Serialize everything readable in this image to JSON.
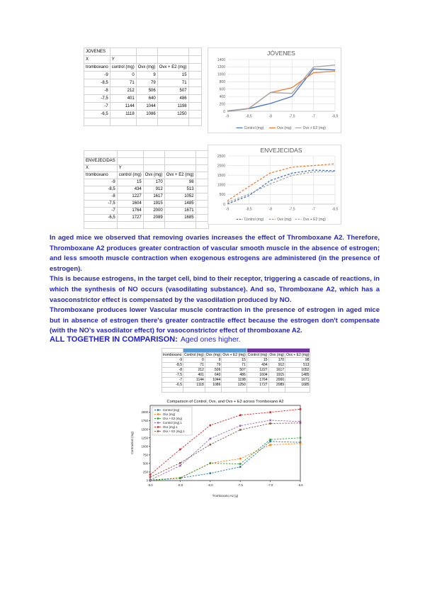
{
  "document": {
    "paragraphs": [
      "In aged mice we observed that removing ovaries increases the effect of Thromboxane A2. Therefore, Thromboxane A2 produces greater contraction of vascular smooth muscle in the absence of estrogen; and less smooth muscle contraction when exogenous estrogens are administered (in the presence of estrogen).",
      "This is because estrogens, in the target cell, bind to their receptor, triggering a cascade of reactions, in which the synthesis of NO occurs (vasodilating substance). And so, Thromboxane A2, which has a vasoconstrictor effect is compensated by the vasodilation produced by NO.",
      "Thromboxane produces lower Vascular muscle contraction in the presence of estrogen in aged mice but in absence of estrogen there's greater contractile effect because the estrogen don't compensate (with the NO's vasodilator effect) for vasoconstrictor effect of thromboxane A2."
    ],
    "comparison_heading": "ALL TOGETHER IN COMPARISON:",
    "comparison_note": "Aged ones higher.",
    "text_color": "#2326c9",
    "heading_color": "#1c1cf0"
  },
  "young_table": {
    "title": "JOVENES",
    "x_label": "X",
    "y_label": "Y",
    "headers": [
      "tromboxano",
      "control (mg)",
      "Ovx (mg)",
      "Ovx + E2 (mg)"
    ],
    "rows": [
      [
        "-9",
        "0",
        "9",
        "15"
      ],
      [
        "-8,5",
        "71",
        "79",
        "71"
      ],
      [
        "-8",
        "212",
        "506",
        "507"
      ],
      [
        "-7,5",
        "401",
        "640",
        "486"
      ],
      [
        "-7",
        "1144",
        "1044",
        "1198"
      ],
      [
        "-6,5",
        "1118",
        "1086",
        "1250"
      ]
    ]
  },
  "aged_table": {
    "title": "ENVEJECIDAS",
    "x_label": "X",
    "y_label": "Y",
    "headers": [
      "tromboxano",
      "control (mg)",
      "Ovx (mg)",
      "Ovx + E2 (mg)"
    ],
    "rows": [
      [
        "-9",
        "15",
        "170",
        "98"
      ],
      [
        "-8,5",
        "434",
        "912",
        "513"
      ],
      [
        "-8",
        "1227",
        "1617",
        "1052"
      ],
      [
        "-7,5",
        "1604",
        "1915",
        "1485"
      ],
      [
        "-7",
        "1764",
        "2000",
        "1671"
      ],
      [
        "-6,5",
        "1727",
        "2089",
        "1685"
      ]
    ]
  },
  "comparison_table": {
    "young_band_color": "#5B9BD5",
    "aged_band_color": "#7030A0",
    "headers": [
      "tromboxano",
      "Control (mg)",
      "Ovx (mg)",
      "Ovx + E2 (mg)",
      "Control (mg)",
      "Ovx (mg)",
      "Ovx + E2 (mg)"
    ],
    "rows": [
      [
        "-9",
        "0",
        "9",
        "15",
        "15",
        "170",
        "98"
      ],
      [
        "-8,5",
        "71",
        "79",
        "71",
        "434",
        "912",
        "513"
      ],
      [
        "-8",
        "212",
        "506",
        "507",
        "1227",
        "1617",
        "1052"
      ],
      [
        "-7,5",
        "401",
        "640",
        "486",
        "1604",
        "1915",
        "1485"
      ],
      [
        "-7",
        "1144",
        "1044",
        "1198",
        "1764",
        "2000",
        "1671"
      ],
      [
        "-6,5",
        "1118",
        "1086",
        "1250",
        "1727",
        "2089",
        "1685"
      ]
    ]
  },
  "chart_data": [
    {
      "type": "line",
      "title": "JÓVENES",
      "categories": [
        "-9",
        "-8,5",
        "-8",
        "-7,5",
        "-7",
        "-6,5"
      ],
      "series": [
        {
          "name": "Control (mg)",
          "color": "#4472C4",
          "values": [
            0,
            71,
            212,
            401,
            1144,
            1118
          ]
        },
        {
          "name": "Ovx (mg)",
          "color": "#ED7D31",
          "values": [
            9,
            79,
            506,
            640,
            1044,
            1086
          ]
        },
        {
          "name": "Ovx + E2 (mg)",
          "color": "#A5A5A5",
          "values": [
            15,
            71,
            507,
            486,
            1198,
            1250
          ]
        }
      ],
      "ylim": [
        0,
        1400
      ],
      "ytick": 200,
      "grid": true,
      "legend_position": "bottom",
      "line_style": "solid"
    },
    {
      "type": "line",
      "title": "ENVEJECIDAS",
      "categories": [
        "-9",
        "-8,5",
        "-8",
        "-7,5",
        "-7",
        "-6,5"
      ],
      "series": [
        {
          "name": "Control (mg)",
          "color": "#4472C4",
          "values": [
            15,
            434,
            1227,
            1604,
            1764,
            1727
          ]
        },
        {
          "name": "Ovx (mg)",
          "color": "#ED7D31",
          "values": [
            170,
            912,
            1617,
            1915,
            2000,
            2089
          ]
        },
        {
          "name": "Ovx + E2 (mg)",
          "color": "#A5A5A5",
          "values": [
            98,
            513,
            1052,
            1485,
            1671,
            1685
          ]
        }
      ],
      "ylim": [
        0,
        2500
      ],
      "ytick": 500,
      "grid": true,
      "legend_position": "bottom",
      "line_style": "dashed"
    },
    {
      "type": "line",
      "title": "Comparison of Control, Ovx, and Ovx + E2 across Tromboxano A2",
      "xlabel": "Tromboxano A2 (g)",
      "ylabel": "Contraction (mg)",
      "categories": [
        "-9.0",
        "-8.5",
        "-8.0",
        "-7.5",
        "-7.0",
        "-6.5"
      ],
      "series": [
        {
          "name": "Control (mg)",
          "color": "#1f77b4",
          "values": [
            0,
            71,
            212,
            401,
            1144,
            1118
          ]
        },
        {
          "name": "Ovx (mg)",
          "color": "#ff7f0e",
          "values": [
            9,
            79,
            506,
            640,
            1044,
            1086
          ]
        },
        {
          "name": "Ovx + E2 (mg)",
          "color": "#2ca02c",
          "values": [
            15,
            71,
            507,
            486,
            1198,
            1250
          ]
        },
        {
          "name": "Control (mg).1",
          "color": "#9467bd",
          "values": [
            15,
            434,
            1227,
            1604,
            1764,
            1727
          ]
        },
        {
          "name": "Ovx (mg).1",
          "color": "#d62728",
          "values": [
            170,
            912,
            1617,
            1915,
            2000,
            2089
          ]
        },
        {
          "name": "Ovx + E2 (mg).1",
          "color": "#8c564b",
          "values": [
            98,
            513,
            1052,
            1485,
            1671,
            1685
          ]
        }
      ],
      "ylim": [
        0,
        2200
      ],
      "ytick": 250,
      "grid": false,
      "legend_position": "upper-left",
      "line_style": "dashed",
      "marker": "square"
    }
  ]
}
